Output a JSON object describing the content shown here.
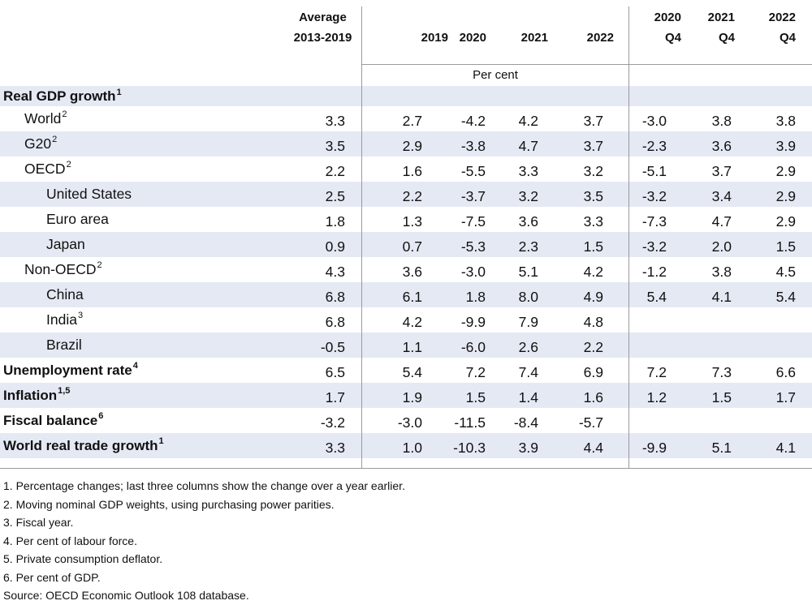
{
  "header": {
    "avg_l1": "Average",
    "avg_l2": "2013-2019",
    "years": [
      "2019",
      "2020",
      "2021",
      "2022"
    ],
    "q_years": [
      "2020",
      "2021",
      "2022"
    ],
    "q_label": "Q4",
    "unit": "Per cent"
  },
  "section": {
    "label": "Real GDP growth",
    "sup": "1"
  },
  "rows": [
    {
      "label": "World",
      "sup": "2",
      "indent": 1,
      "bold": false,
      "band": false,
      "values": [
        "3.3",
        "2.7",
        "-4.2",
        "4.2",
        "3.7",
        "-3.0",
        "3.8",
        "3.8"
      ]
    },
    {
      "label": "G20",
      "sup": "2",
      "indent": 1,
      "bold": false,
      "band": true,
      "values": [
        "3.5",
        "2.9",
        "-3.8",
        "4.7",
        "3.7",
        "-2.3",
        "3.6",
        "3.9"
      ]
    },
    {
      "label": "OECD",
      "sup": "2",
      "indent": 1,
      "bold": false,
      "band": false,
      "values": [
        "2.2",
        "1.6",
        "-5.5",
        "3.3",
        "3.2",
        "-5.1",
        "3.7",
        "2.9"
      ]
    },
    {
      "label": "United States",
      "sup": "",
      "indent": 2,
      "bold": false,
      "band": true,
      "values": [
        "2.5",
        "2.2",
        "-3.7",
        "3.2",
        "3.5",
        "-3.2",
        "3.4",
        "2.9"
      ]
    },
    {
      "label": "Euro area",
      "sup": "",
      "indent": 2,
      "bold": false,
      "band": false,
      "values": [
        "1.8",
        "1.3",
        "-7.5",
        "3.6",
        "3.3",
        "-7.3",
        "4.7",
        "2.9"
      ]
    },
    {
      "label": "Japan",
      "sup": "",
      "indent": 2,
      "bold": false,
      "band": true,
      "values": [
        "0.9",
        "0.7",
        "-5.3",
        "2.3",
        "1.5",
        "-3.2",
        "2.0",
        "1.5"
      ]
    },
    {
      "label": "Non-OECD",
      "sup": "2",
      "indent": 1,
      "bold": false,
      "band": false,
      "values": [
        "4.3",
        "3.6",
        "-3.0",
        "5.1",
        "4.2",
        "-1.2",
        "3.8",
        "4.5"
      ]
    },
    {
      "label": "China",
      "sup": "",
      "indent": 2,
      "bold": false,
      "band": true,
      "values": [
        "6.8",
        "6.1",
        "1.8",
        "8.0",
        "4.9",
        "5.4",
        "4.1",
        "5.4"
      ]
    },
    {
      "label": "India",
      "sup": "3",
      "indent": 2,
      "bold": false,
      "band": false,
      "values": [
        "6.8",
        "4.2",
        "-9.9",
        "7.9",
        "4.8",
        "",
        "",
        ""
      ]
    },
    {
      "label": "Brazil",
      "sup": "",
      "indent": 2,
      "bold": false,
      "band": true,
      "values": [
        "-0.5",
        "1.1",
        "-6.0",
        "2.6",
        "2.2",
        "",
        "",
        ""
      ]
    },
    {
      "label": "Unemployment rate",
      "sup": "4",
      "indent": 0,
      "bold": true,
      "band": false,
      "values": [
        "6.5",
        "5.4",
        "7.2",
        "7.4",
        "6.9",
        "7.2",
        "7.3",
        "6.6"
      ]
    },
    {
      "label": "Inflation",
      "sup": "1,5",
      "indent": 0,
      "bold": true,
      "band": true,
      "values": [
        "1.7",
        "1.9",
        "1.5",
        "1.4",
        "1.6",
        "1.2",
        "1.5",
        "1.7"
      ]
    },
    {
      "label": "Fiscal balance",
      "sup": "6",
      "indent": 0,
      "bold": true,
      "band": false,
      "values": [
        "-3.2",
        "-3.0",
        "-11.5",
        "-8.4",
        "-5.7",
        "",
        "",
        ""
      ]
    },
    {
      "label": "World real trade growth",
      "sup": "1",
      "indent": 0,
      "bold": true,
      "band": true,
      "values": [
        "3.3",
        "1.0",
        "-10.3",
        "3.9",
        "4.4",
        "-9.9",
        "5.1",
        "4.1"
      ]
    }
  ],
  "notes": [
    "1. Percentage changes; last three columns show the change over a year earlier.",
    "2. Moving nominal GDP weights, using purchasing power parities.",
    "3. Fiscal year.",
    "4. Per cent of labour force.",
    "5. Private consumption deflator.",
    "6. Per cent of GDP.",
    "Source: OECD Economic Outlook 108 database."
  ]
}
